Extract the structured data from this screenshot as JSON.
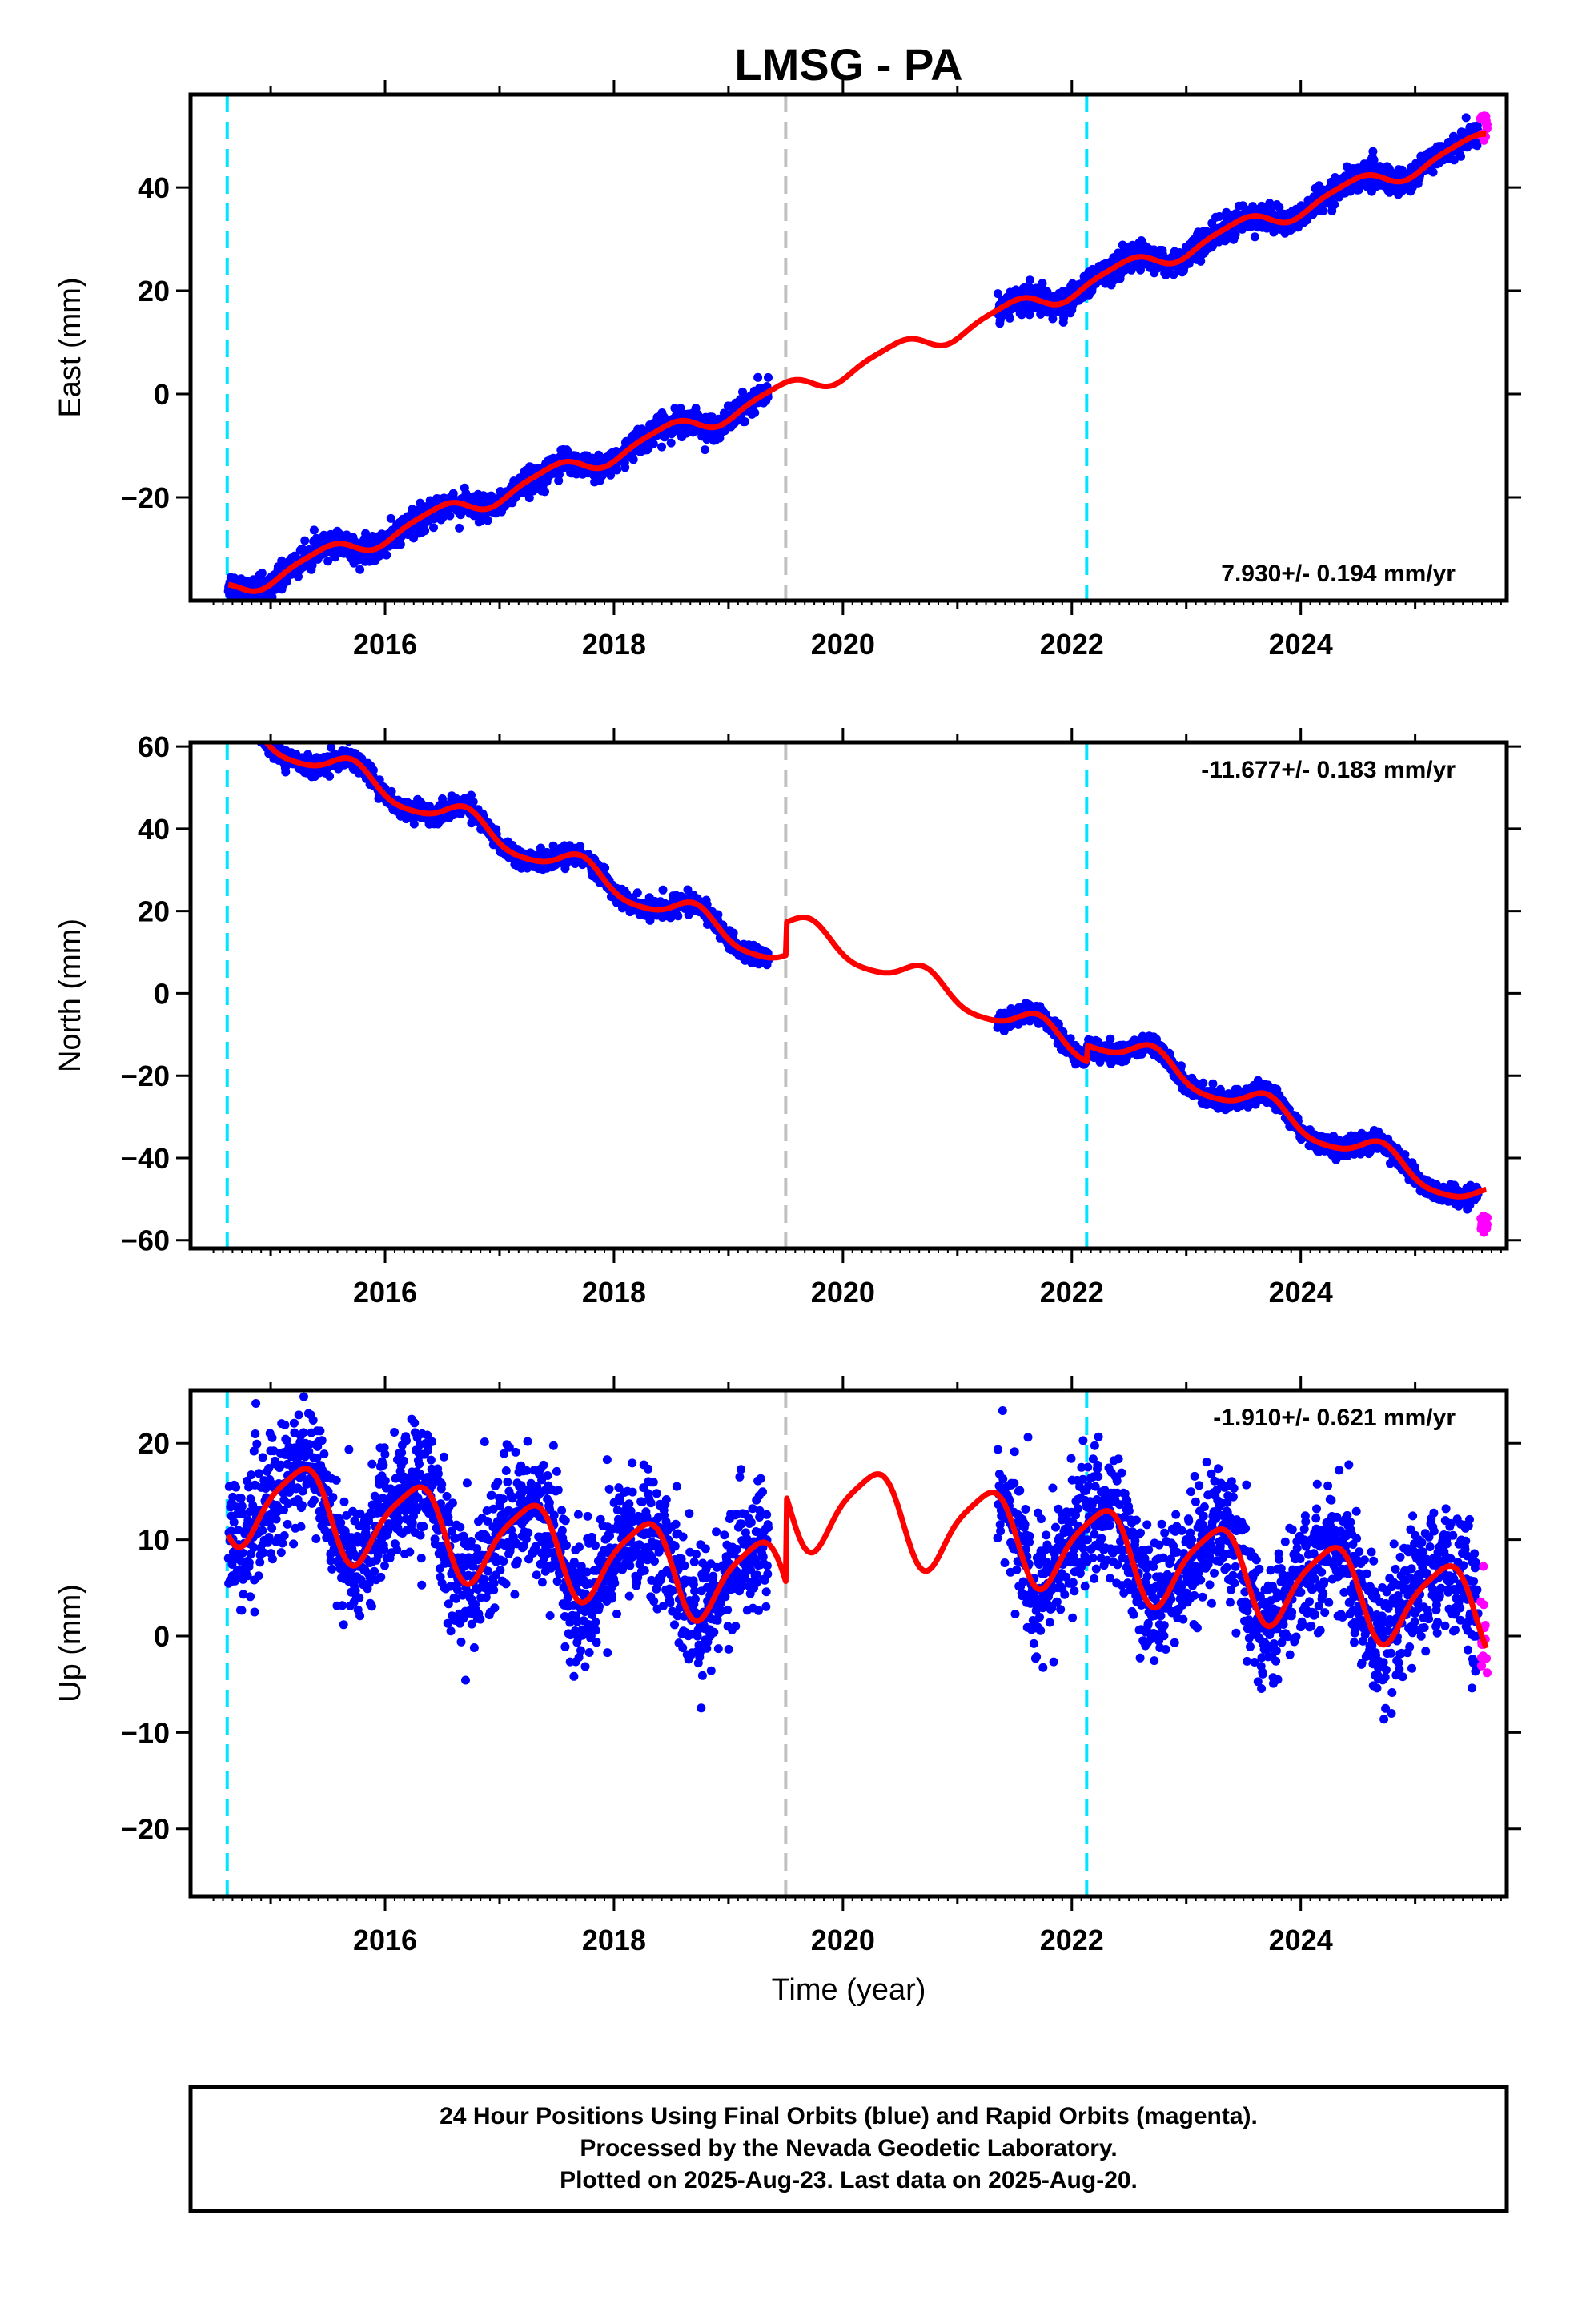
{
  "colors": {
    "final_orbits": "#0000ff",
    "rapid_orbits": "#ff00ff",
    "model": "#ff0000",
    "event_cyan": "#00e5ff",
    "event_gray": "#c0c0c0",
    "frame": "#000000"
  },
  "chart_data": {
    "type": "scatter",
    "title": "LMSG - PA",
    "xlabel": "Time (year)",
    "x_ticks": [
      2016,
      2018,
      2020,
      2022,
      2024
    ],
    "xlim": [
      2014.3,
      2025.8
    ],
    "event_lines": [
      {
        "x": 2014.62,
        "color": "cyan"
      },
      {
        "x": 2019.5,
        "color": "gray"
      },
      {
        "x": 2022.13,
        "color": "cyan"
      }
    ],
    "panels": [
      {
        "id": "east",
        "ylabel": "East (mm)",
        "ylim": [
          -40,
          58
        ],
        "y_ticks": [
          -20,
          0,
          20,
          40
        ],
        "rate_text": "7.930+/- 0.194 mm/yr",
        "rate_position": "bottom-right",
        "data_gap": [
          2019.35,
          2021.35
        ],
        "model": {
          "slope": 7.93,
          "ref_year": 2020,
          "offset": 4.5,
          "annual_amp": 1.8,
          "annual_phase": 0.2,
          "semiannual_amp": 0.4,
          "semiannual_phase": 0.5,
          "steps": [
            {
              "at": 2019.5,
              "size": 0
            }
          ]
        },
        "noise": 1.2,
        "rapid_y_range": [
          49,
          54
        ]
      },
      {
        "id": "north",
        "ylabel": "North (mm)",
        "ylim": [
          -62,
          61
        ],
        "y_ticks": [
          -60,
          -40,
          -20,
          0,
          20,
          40,
          60
        ],
        "rate_text": "-11.677+/- 0.183 mm/yr",
        "rate_position": "top-right",
        "data_gap": [
          2019.35,
          2021.35
        ],
        "model": {
          "slope": -11.677,
          "ref_year": 2020,
          "offset": 3.0,
          "annual_amp": 3.2,
          "annual_phase": 0.45,
          "semiannual_amp": 0.6,
          "semiannual_phase": 0.1,
          "steps": [
            {
              "at": 2019.5,
              "size": 8
            },
            {
              "at": 2022.13,
              "size": 4
            }
          ]
        },
        "noise": 1.1,
        "rapid_y_range": [
          -59,
          -54
        ]
      },
      {
        "id": "up",
        "ylabel": "Up (mm)",
        "ylim": [
          -27,
          25.5
        ],
        "y_ticks": [
          -20,
          -10,
          0,
          10,
          20
        ],
        "rate_text": "-1.910+/- 0.621 mm/yr",
        "rate_position": "top-right",
        "data_gap": [
          2019.35,
          2021.35
        ],
        "model": {
          "slope": -1.91,
          "ref_year": 2020,
          "offset": 4.2,
          "annual_amp": 4.4,
          "annual_phase": 0.0,
          "semiannual_amp": 0.9,
          "semiannual_phase": 0.3,
          "steps": [
            {
              "at": 2019.5,
              "size": 9
            }
          ]
        },
        "noise": 3.3,
        "rapid_y_range": [
          -5,
          7.5
        ]
      }
    ]
  },
  "footer": {
    "line1": "24 Hour Positions Using Final Orbits (blue) and Rapid Orbits (magenta).",
    "line2": "Processed by the Nevada Geodetic Laboratory.",
    "line3": "Plotted on 2025-Aug-23. Last data on 2025-Aug-20."
  }
}
